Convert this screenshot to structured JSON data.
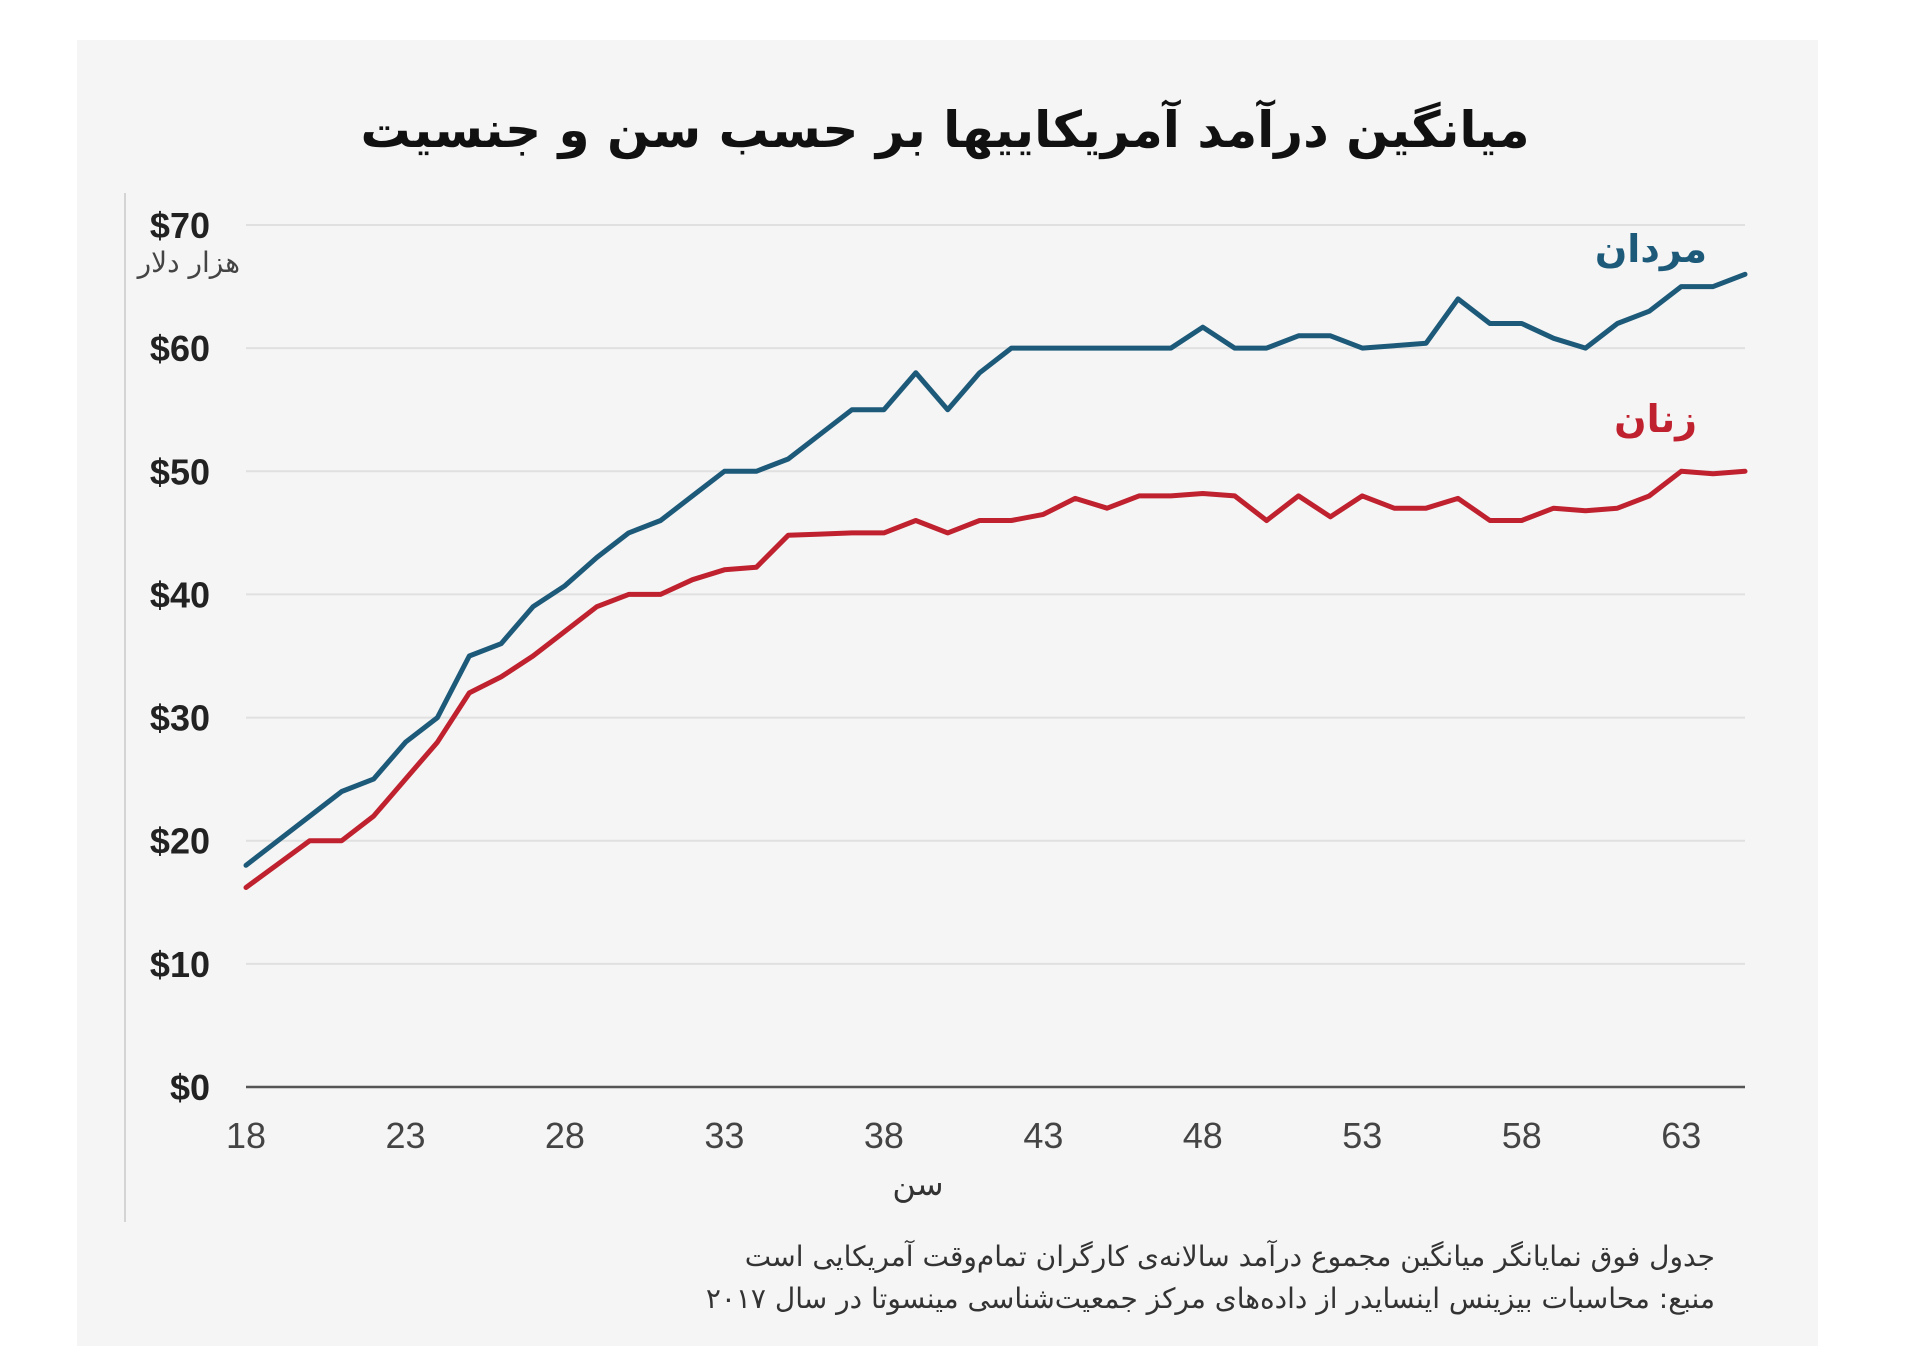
{
  "chart_data": {
    "type": "line",
    "title": "میانگین درآمد آمریکاییها بر حسب سن و جنسیت",
    "unit_label": "هزار دلار",
    "xlabel": "سن",
    "ylabel": "",
    "xlim": [
      18,
      65
    ],
    "ylim": [
      0,
      70
    ],
    "x_ticks": [
      18,
      23,
      28,
      33,
      38,
      43,
      48,
      53,
      58,
      63
    ],
    "y_ticks": [
      {
        "value": 0,
        "label": "$0"
      },
      {
        "value": 10,
        "label": "$10"
      },
      {
        "value": 20,
        "label": "$20"
      },
      {
        "value": 30,
        "label": "$30"
      },
      {
        "value": 40,
        "label": "$40"
      },
      {
        "value": 50,
        "label": "$50"
      },
      {
        "value": 60,
        "label": "$60"
      },
      {
        "value": 70,
        "label": "$70"
      }
    ],
    "grid": true,
    "x": [
      18,
      19,
      20,
      21,
      22,
      23,
      24,
      25,
      26,
      27,
      28,
      29,
      30,
      31,
      32,
      33,
      34,
      35,
      36,
      37,
      38,
      39,
      40,
      41,
      42,
      43,
      44,
      45,
      46,
      47,
      48,
      49,
      50,
      51,
      52,
      53,
      54,
      55,
      56,
      57,
      58,
      59,
      60,
      61,
      62,
      63,
      64,
      65
    ],
    "series": [
      {
        "name": "مردان",
        "color": "#1d5a7a",
        "values": [
          18,
          20,
          22,
          24,
          25,
          28,
          30,
          35,
          36,
          39,
          40.7,
          43,
          45,
          46,
          48,
          50,
          50,
          51,
          53,
          55,
          55,
          58,
          55,
          58,
          60,
          60,
          60,
          60,
          60,
          60,
          61.7,
          60,
          60,
          61,
          61,
          60,
          60.2,
          60.4,
          64,
          62,
          62,
          60.8,
          60,
          62,
          63,
          65,
          65,
          66
        ]
      },
      {
        "name": "زنان",
        "color": "#c0212e",
        "values": [
          16.2,
          18.1,
          20,
          20,
          22,
          25,
          28,
          32,
          33.3,
          35,
          37,
          39,
          40,
          40,
          41.2,
          42,
          42.2,
          44.8,
          44.9,
          45,
          45,
          46,
          45,
          46,
          46,
          46.5,
          47.8,
          47,
          48,
          48,
          48.2,
          48,
          46,
          48,
          46.3,
          48,
          47,
          47,
          47.8,
          46,
          46,
          47,
          46.8,
          47,
          48,
          50,
          49.8,
          50
        ]
      }
    ]
  },
  "footnote": {
    "line1": "جدول فوق نمایانگر میانگین مجموع درآمد سالانه‌ی کارگران تمام‌وقت آمریکایی است",
    "line2": "منبع: محاسبات بیزینس اینسایدر از داده‌های مرکز جمعیت‌شناسی مینسوتا در سال ۲۰۱۷"
  }
}
